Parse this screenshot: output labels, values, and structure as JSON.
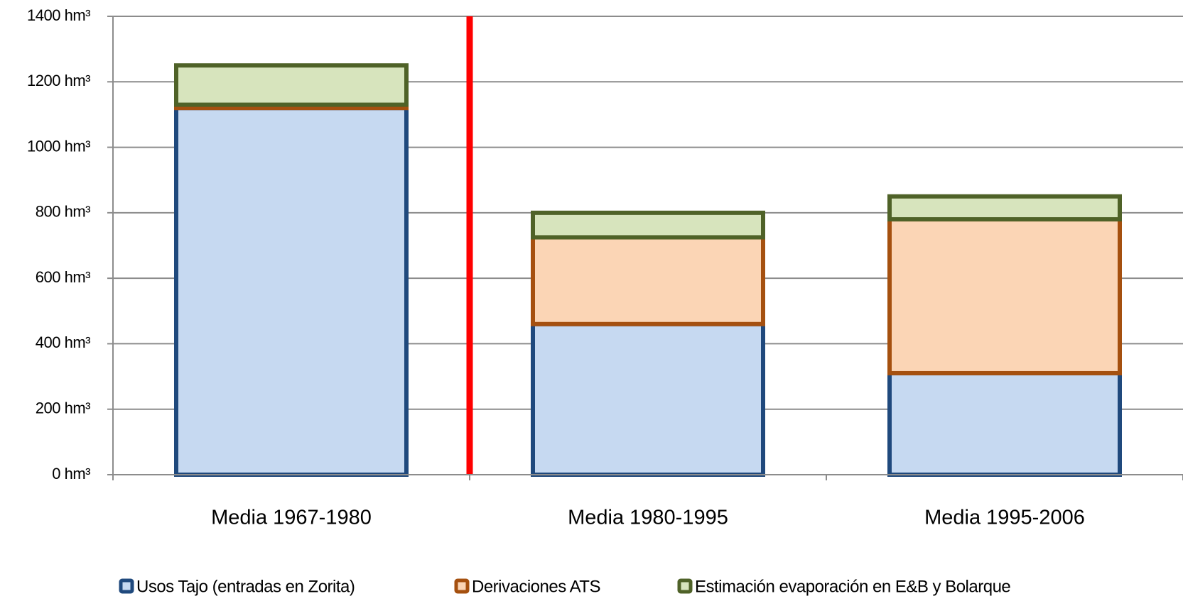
{
  "chart_data": {
    "type": "stacked_bar",
    "categories": [
      "Media 1967-1980",
      "Media 1980-1995",
      "Media 1995-2006"
    ],
    "series": [
      {
        "name": "Usos Tajo (entradas en Zorita)",
        "color": "#c6d9f1",
        "border": "#1f497d",
        "values": [
          1120,
          460,
          310
        ]
      },
      {
        "name": "Derivaciones ATS",
        "color": "#fbd5b5",
        "border": "#a5500f",
        "values": [
          10,
          265,
          470
        ]
      },
      {
        "name": "Estimación evaporación en E&B y Bolarque",
        "color": "#d7e4bd",
        "border": "#4f6228",
        "values": [
          120,
          75,
          70
        ]
      }
    ],
    "ylim": [
      0,
      1400
    ],
    "yticks": [
      {
        "value": 0,
        "label": "0 hm³"
      },
      {
        "value": 200,
        "label": "200 hm³"
      },
      {
        "value": 400,
        "label": "400 hm³"
      },
      {
        "value": 600,
        "label": "600 hm³"
      },
      {
        "value": 800,
        "label": "800 hm³"
      },
      {
        "value": 1000,
        "label": "1000 hm³"
      },
      {
        "value": 1200,
        "label": "1200 hm³"
      },
      {
        "value": 1400,
        "label": "1400 hm³"
      }
    ],
    "grid": true
  }
}
